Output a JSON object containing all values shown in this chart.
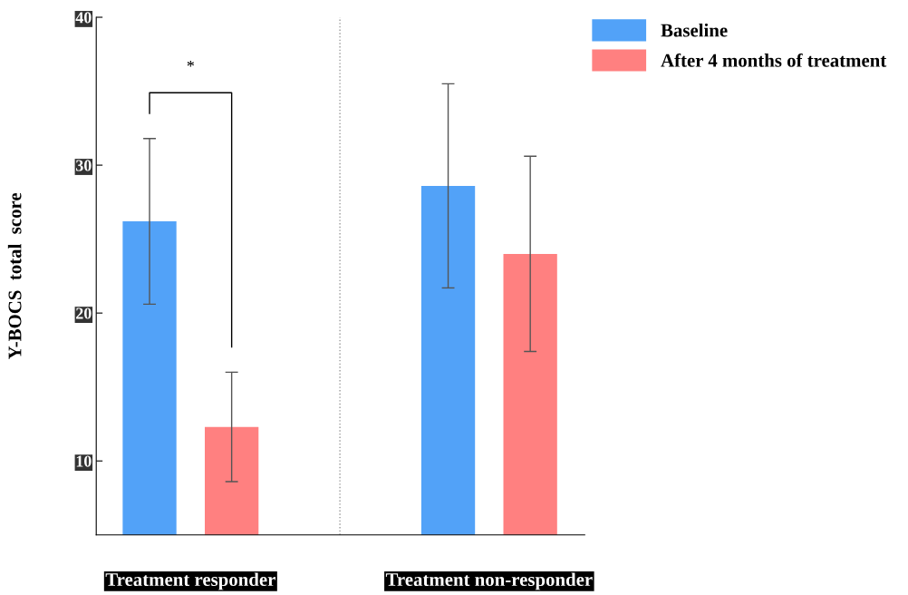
{
  "chart_data": {
    "type": "bar",
    "ylabel": "Y-BOCS  total  score",
    "categories": [
      "Treatment responder",
      "Treatment non-responder"
    ],
    "series": [
      {
        "name": "Baseline",
        "color": "#52a2f8",
        "values": [
          26.2,
          28.6
        ],
        "errors": [
          5.6,
          6.9
        ]
      },
      {
        "name": "After 4 months of treatment",
        "color": "#ff8080",
        "values": [
          12.3,
          24.0
        ],
        "errors": [
          3.7,
          6.6
        ]
      }
    ],
    "ylim": [
      5,
      40
    ],
    "yticks": [
      10,
      20,
      30,
      40
    ],
    "grid": false,
    "legend": "top right",
    "annotations": [
      "*"
    ]
  }
}
